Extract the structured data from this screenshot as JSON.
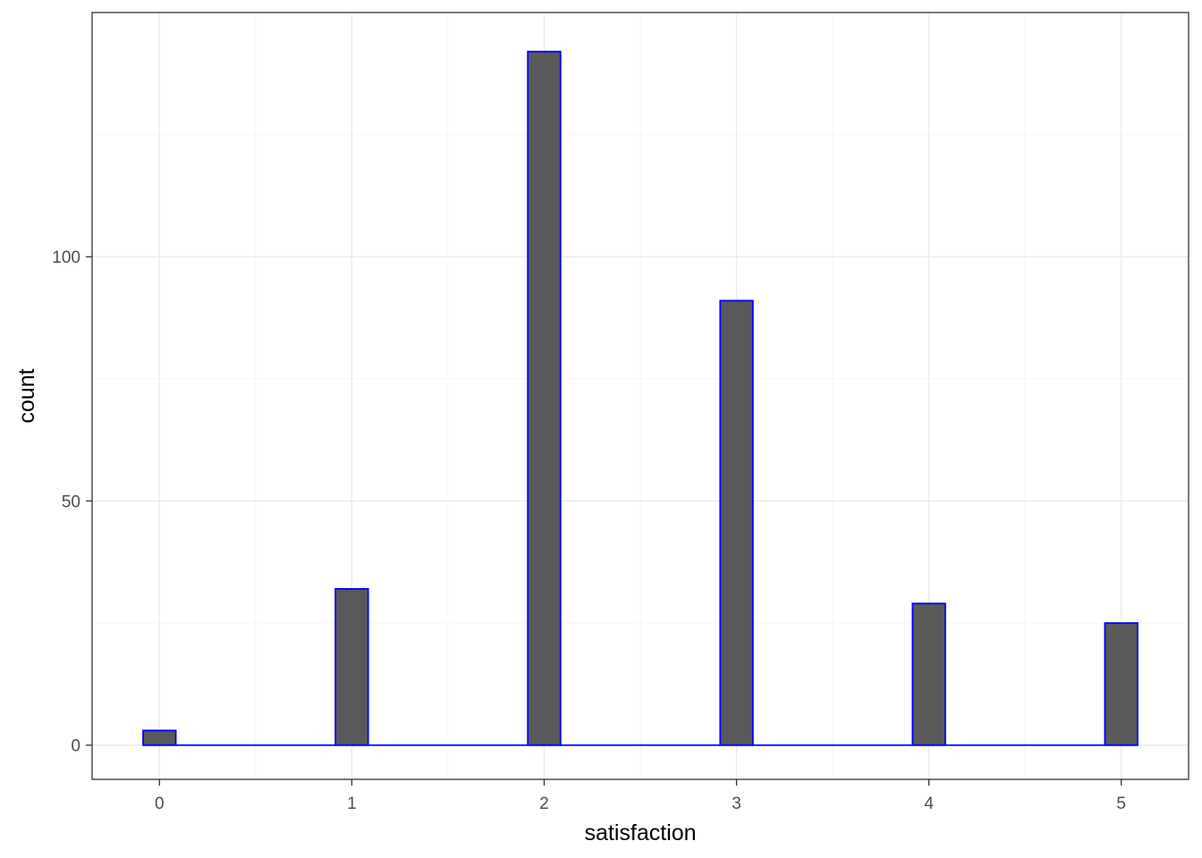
{
  "chart_data": {
    "type": "bar",
    "chart_kind": "histogram",
    "title": "",
    "xlabel": "satisfaction",
    "ylabel": "count",
    "x": [
      0,
      1,
      2,
      3,
      4,
      5
    ],
    "values": [
      3,
      32,
      142,
      91,
      29,
      25
    ],
    "bin_width": 0.17,
    "xlim": [
      -0.35,
      5.35
    ],
    "ylim": [
      -7,
      150
    ],
    "x_major_ticks": [
      0,
      1,
      2,
      3,
      4,
      5
    ],
    "x_tick_labels": [
      "0",
      "1",
      "2",
      "3",
      "4",
      "5"
    ],
    "x_minor_ticks": [
      0.5,
      1.5,
      2.5,
      3.5,
      4.5
    ],
    "y_major_ticks": [
      0,
      50,
      100
    ],
    "y_tick_labels": [
      "0",
      "50",
      "100"
    ],
    "y_minor_ticks": [
      25,
      75,
      125
    ],
    "grid": true,
    "legend": "none",
    "colors": {
      "bar_fill": "#595959",
      "bar_outline": "#0000ff",
      "grid": "#ebebeb",
      "border": "#333333"
    }
  }
}
